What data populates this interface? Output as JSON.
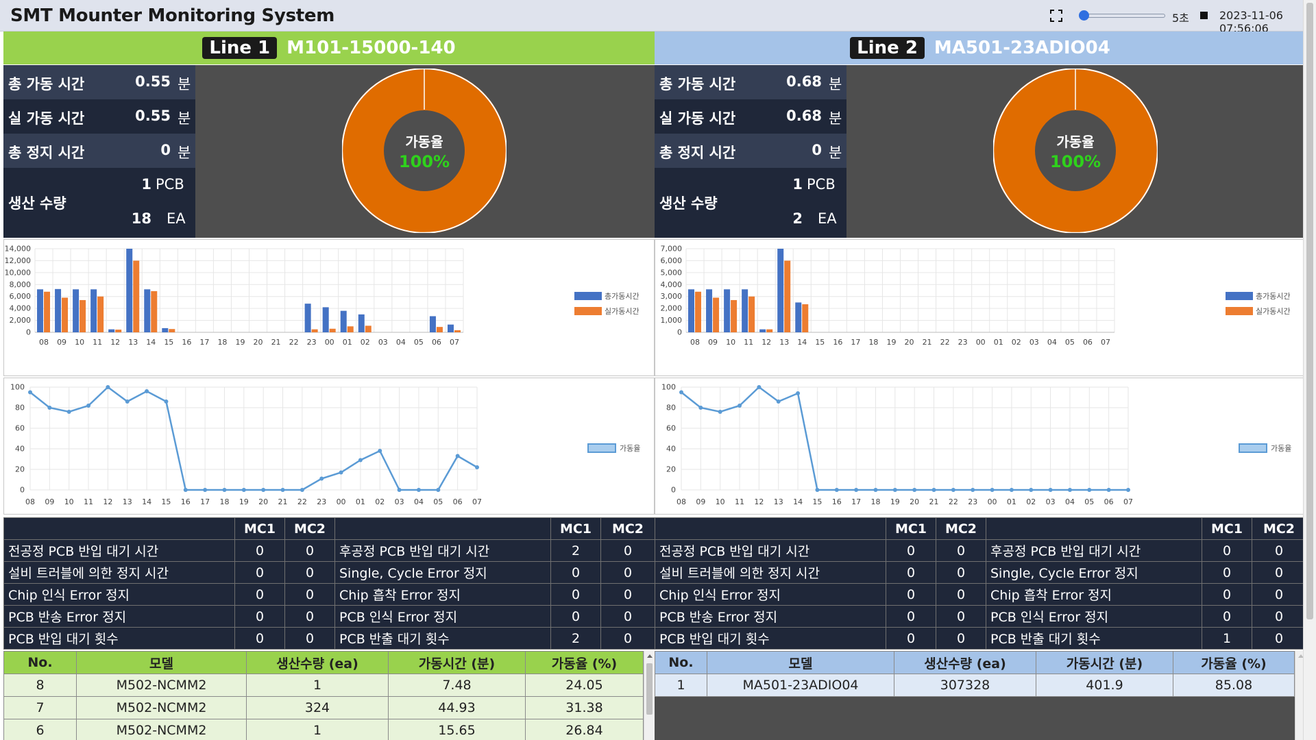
{
  "app": {
    "title": "SMT Mounter Monitoring System",
    "interval": "5초",
    "datetime": "2023-11-06 07:56:06",
    "fullscreen_icon": "fullscreen-icon",
    "stop_icon": "stop-icon",
    "refresh_slider_fraction": 0.0
  },
  "colors": {
    "line1": "#99d24d",
    "line2": "#a5c3e8",
    "stats_bg": "#1f2739",
    "donut": "#e06c00",
    "rate_text": "#2fd11c",
    "bar_total": "#4472c4",
    "bar_actual": "#ed7d31",
    "line_rate": "#5b9bd5"
  },
  "lines": [
    {
      "badge": "Line 1",
      "model": "M101-15000-140",
      "stats": [
        {
          "label": "총 가동 시간",
          "value": "0.55",
          "unit": "분"
        },
        {
          "label": "실 가동 시간",
          "value": "0.55",
          "unit": "분"
        },
        {
          "label": "총 정지 시간",
          "value": "0",
          "unit": "분"
        }
      ],
      "production": {
        "label": "생산 수량",
        "pcb": "1",
        "pcb_unit": "PCB",
        "ea": "18",
        "ea_unit": "EA"
      },
      "donut": {
        "label": "가동율",
        "value": "100%",
        "fraction": 1.0
      },
      "bar_chart": {
        "type": "bar",
        "categories": [
          "08",
          "09",
          "10",
          "11",
          "12",
          "13",
          "14",
          "15",
          "16",
          "17",
          "18",
          "19",
          "20",
          "21",
          "22",
          "23",
          "00",
          "01",
          "02",
          "03",
          "04",
          "05",
          "06",
          "07"
        ],
        "series": [
          {
            "name": "총가동시간",
            "values": [
              7200,
              7250,
              7200,
              7200,
              500,
              14000,
              7200,
              700,
              0,
              0,
              0,
              0,
              0,
              0,
              0,
              4800,
              4200,
              3600,
              3000,
              0,
              0,
              0,
              2700,
              1300
            ]
          },
          {
            "name": "실가동시간",
            "values": [
              6800,
              5800,
              5400,
              6000,
              450,
              12000,
              6900,
              550,
              0,
              0,
              0,
              0,
              0,
              0,
              0,
              500,
              600,
              1000,
              1100,
              0,
              0,
              0,
              900,
              350
            ]
          }
        ],
        "ylim": [
          0,
          14000
        ],
        "yticks": [
          "14,000",
          "12,000",
          "10,000",
          "8,000",
          "6,000",
          "4,000",
          "2,000",
          "0"
        ],
        "legend": "right"
      },
      "line_chart": {
        "type": "line",
        "categories": [
          "08",
          "09",
          "10",
          "11",
          "12",
          "13",
          "14",
          "15",
          "16",
          "17",
          "18",
          "19",
          "20",
          "21",
          "22",
          "23",
          "00",
          "01",
          "02",
          "03",
          "04",
          "05",
          "06",
          "07"
        ],
        "series": [
          {
            "name": "가동율",
            "values": [
              95,
              80,
              76,
              82,
              100,
              86,
              96,
              86,
              0,
              0,
              0,
              0,
              0,
              0,
              0,
              11,
              17,
              29,
              38,
              0,
              0,
              0,
              33,
              22
            ]
          }
        ],
        "ylim": [
          0,
          100
        ],
        "yticks": [
          "100",
          "80",
          "60",
          "40",
          "20",
          "0"
        ],
        "legend": "right"
      },
      "errors": {
        "headers": [
          "MC1",
          "MC2"
        ],
        "rows": [
          {
            "left": "전공정 PCB 반입 대기 시간",
            "l1": "0",
            "l2": "0",
            "right": "후공정 PCB 반입 대기 시간",
            "r1": "2",
            "r2": "0"
          },
          {
            "left": "설비 트러블에 의한 정지 시간",
            "l1": "0",
            "l2": "0",
            "right": "Single, Cycle Error 정지",
            "r1": "0",
            "r2": "0"
          },
          {
            "left": "Chip 인식 Error 정지",
            "l1": "0",
            "l2": "0",
            "right": "Chip 흡착 Error 정지",
            "r1": "0",
            "r2": "0"
          },
          {
            "left": "PCB 반송 Error 정지",
            "l1": "0",
            "l2": "0",
            "right": "PCB 인식 Error 정지",
            "r1": "0",
            "r2": "0"
          },
          {
            "left": "PCB 반입 대기 횟수",
            "l1": "0",
            "l2": "0",
            "right": "PCB 반출 대기 횟수",
            "r1": "2",
            "r2": "0"
          }
        ]
      },
      "history": {
        "headers": [
          "No.",
          "모델",
          "생산수량 (ea)",
          "가동시간 (분)",
          "가동율 (%)"
        ],
        "rows": [
          [
            "8",
            "M502-NCMM2",
            "1",
            "7.48",
            "24.05"
          ],
          [
            "7",
            "M502-NCMM2",
            "324",
            "44.93",
            "31.38"
          ],
          [
            "6",
            "M502-NCMM2",
            "1",
            "15.65",
            "26.84"
          ]
        ]
      }
    },
    {
      "badge": "Line 2",
      "model": "MA501-23ADIO04",
      "stats": [
        {
          "label": "총 가동 시간",
          "value": "0.68",
          "unit": "분"
        },
        {
          "label": "실 가동 시간",
          "value": "0.68",
          "unit": "분"
        },
        {
          "label": "총 정지 시간",
          "value": "0",
          "unit": "분"
        }
      ],
      "production": {
        "label": "생산 수량",
        "pcb": "1",
        "pcb_unit": "PCB",
        "ea": "2",
        "ea_unit": "EA"
      },
      "donut": {
        "label": "가동율",
        "value": "100%",
        "fraction": 1.0
      },
      "bar_chart": {
        "type": "bar",
        "categories": [
          "08",
          "09",
          "10",
          "11",
          "12",
          "13",
          "14",
          "15",
          "16",
          "17",
          "18",
          "19",
          "20",
          "21",
          "22",
          "23",
          "00",
          "01",
          "02",
          "03",
          "04",
          "05",
          "06",
          "07"
        ],
        "series": [
          {
            "name": "총가동시간",
            "values": [
              3600,
              3600,
              3600,
              3600,
              250,
              7000,
              2500,
              0,
              0,
              0,
              0,
              0,
              0,
              0,
              0,
              0,
              0,
              0,
              0,
              0,
              0,
              0,
              0,
              0
            ]
          },
          {
            "name": "실가동시간",
            "values": [
              3400,
              2900,
              2700,
              3000,
              250,
              6000,
              2350,
              0,
              0,
              0,
              0,
              0,
              0,
              0,
              0,
              0,
              0,
              0,
              0,
              0,
              0,
              0,
              0,
              0
            ]
          }
        ],
        "ylim": [
          0,
          7000
        ],
        "yticks": [
          "7,000",
          "6,000",
          "5,000",
          "4,000",
          "3,000",
          "2,000",
          "1,000",
          "0"
        ],
        "legend": "right"
      },
      "line_chart": {
        "type": "line",
        "categories": [
          "08",
          "09",
          "10",
          "11",
          "12",
          "13",
          "14",
          "15",
          "16",
          "17",
          "18",
          "19",
          "20",
          "21",
          "22",
          "23",
          "00",
          "01",
          "02",
          "03",
          "04",
          "05",
          "06",
          "07"
        ],
        "series": [
          {
            "name": "가동율",
            "values": [
              95,
              80,
              76,
              82,
              100,
              86,
              94,
              0,
              0,
              0,
              0,
              0,
              0,
              0,
              0,
              0,
              0,
              0,
              0,
              0,
              0,
              0,
              0,
              0
            ]
          }
        ],
        "ylim": [
          0,
          100
        ],
        "yticks": [
          "100",
          "80",
          "60",
          "40",
          "20",
          "0"
        ],
        "legend": "right"
      },
      "errors": {
        "headers": [
          "MC1",
          "MC2"
        ],
        "rows": [
          {
            "left": "전공정 PCB 반입 대기 시간",
            "l1": "0",
            "l2": "0",
            "right": "후공정 PCB 반입 대기 시간",
            "r1": "0",
            "r2": "0"
          },
          {
            "left": "설비 트러블에 의한 정지 시간",
            "l1": "0",
            "l2": "0",
            "right": "Single, Cycle Error 정지",
            "r1": "0",
            "r2": "0"
          },
          {
            "left": "Chip 인식 Error 정지",
            "l1": "0",
            "l2": "0",
            "right": "Chip 흡착 Error 정지",
            "r1": "0",
            "r2": "0"
          },
          {
            "left": "PCB 반송 Error 정지",
            "l1": "0",
            "l2": "0",
            "right": "PCB 인식 Error 정지",
            "r1": "0",
            "r2": "0"
          },
          {
            "left": "PCB 반입 대기 횟수",
            "l1": "0",
            "l2": "0",
            "right": "PCB 반출 대기 횟수",
            "r1": "1",
            "r2": "0"
          }
        ]
      },
      "history": {
        "headers": [
          "No.",
          "모델",
          "생산수량 (ea)",
          "가동시간 (분)",
          "가동율 (%)"
        ],
        "rows": [
          [
            "1",
            "MA501-23ADIO04",
            "307328",
            "401.9",
            "85.08"
          ]
        ]
      }
    }
  ]
}
